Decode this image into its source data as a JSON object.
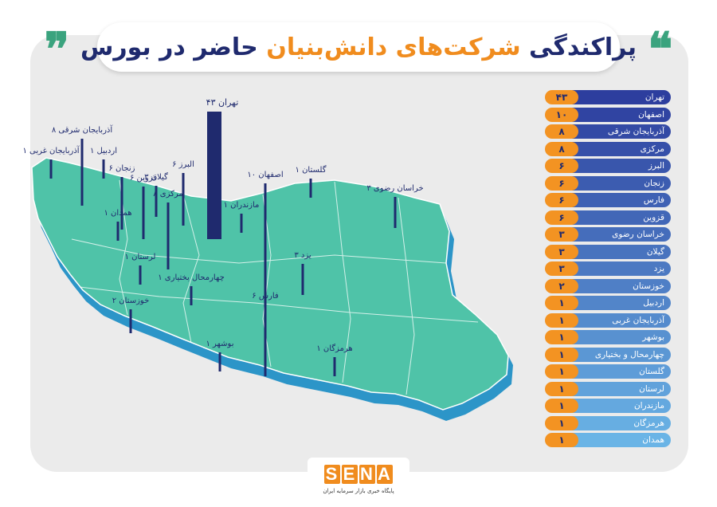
{
  "title": {
    "part1": "پراکندگی ",
    "part2": "شرکت‌های دانش‌بنیان",
    "part3": " حاضر در بورس",
    "quote_open": "❝",
    "quote_close": "❞"
  },
  "colors": {
    "navy": "#1f2a6e",
    "orange": "#f39322",
    "map_top": "#4fc3a8",
    "map_side": "#2c95c8",
    "green": "#3aa37e"
  },
  "chart_data": {
    "type": "bar",
    "title": "پراکندگی شرکت‌های دانش‌بنیان حاضر در بورس",
    "categories": [
      "تهران",
      "اصفهان",
      "آذربایجان شرقی",
      "مرکزی",
      "البرز",
      "زنجان",
      "فارس",
      "قزوین",
      "خراسان رضوی",
      "گیلان",
      "یزد",
      "خوزستان",
      "اردبیل",
      "آذربایجان غربی",
      "بوشهر",
      "چهارمحال و بختیاری",
      "گلستان",
      "لرستان",
      "مازندران",
      "هرمزگان",
      "همدان"
    ],
    "values": [
      43,
      10,
      8,
      8,
      6,
      6,
      6,
      6,
      3,
      3,
      3,
      2,
      1,
      1,
      1,
      1,
      1,
      1,
      1,
      1,
      1
    ],
    "value_labels": [
      "۴۳",
      "۱۰",
      "۸",
      "۸",
      "۶",
      "۶",
      "۶",
      "۶",
      "۳",
      "۳",
      "۳",
      "۲",
      "۱",
      "۱",
      "۱",
      "۱",
      "۱",
      "۱",
      "۱",
      "۱",
      "۱"
    ],
    "map_labels": [
      "تهران",
      "اصفهان",
      "آذربایجان شرقی",
      "مرکزی",
      "البرز",
      "زنجان",
      "فارس",
      "قزوین",
      "خراسان رضوی",
      "گیلان",
      "یزد",
      "خوزستان",
      "اردبیل",
      "آذربایجان غربی",
      "بوشهر",
      "چهارمحال بختیاری",
      "گلستان",
      "لرستان",
      "مازندران",
      "هرمزگان",
      "همدان"
    ]
  },
  "footer": {
    "logo": [
      "S",
      "E",
      "N",
      "A"
    ],
    "tagline": "پایگاه خبری بازار سرمایه ایران"
  }
}
